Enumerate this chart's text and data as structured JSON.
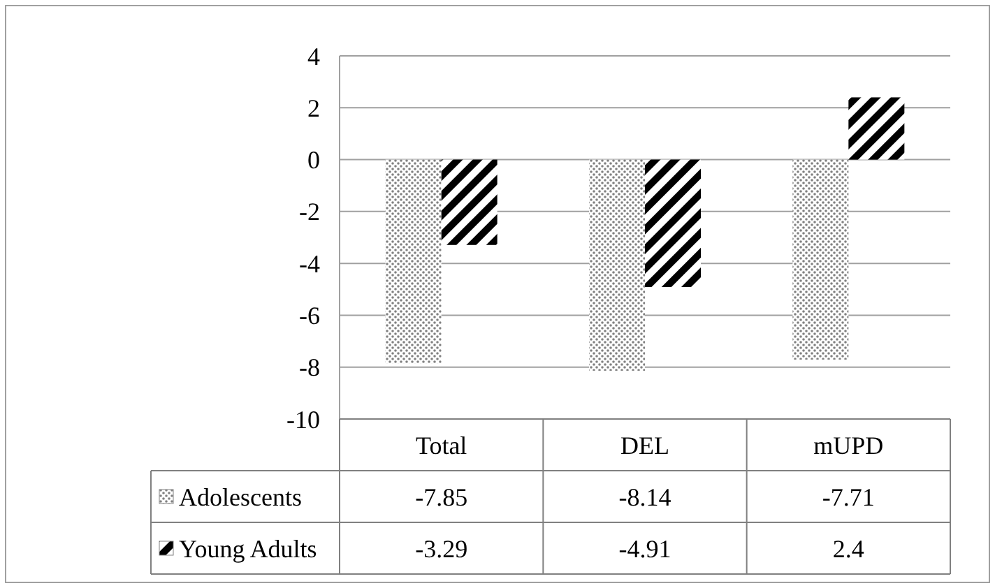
{
  "chart_data": {
    "type": "bar",
    "categories": [
      "Total",
      "DEL",
      "mUPD"
    ],
    "series": [
      {
        "name": "Adolescents",
        "color": "#808080",
        "values": [
          -7.85,
          -8.14,
          -7.71
        ]
      },
      {
        "name": "Young Adults",
        "color": "#000000",
        "values": [
          -3.29,
          -4.91,
          2.4
        ]
      }
    ],
    "ylim": [
      -10,
      4
    ],
    "yticks": [
      -10,
      -8,
      -6,
      -4,
      -2,
      0,
      2,
      4
    ],
    "grid": "y",
    "data_labels": true,
    "legend": "bottom"
  }
}
